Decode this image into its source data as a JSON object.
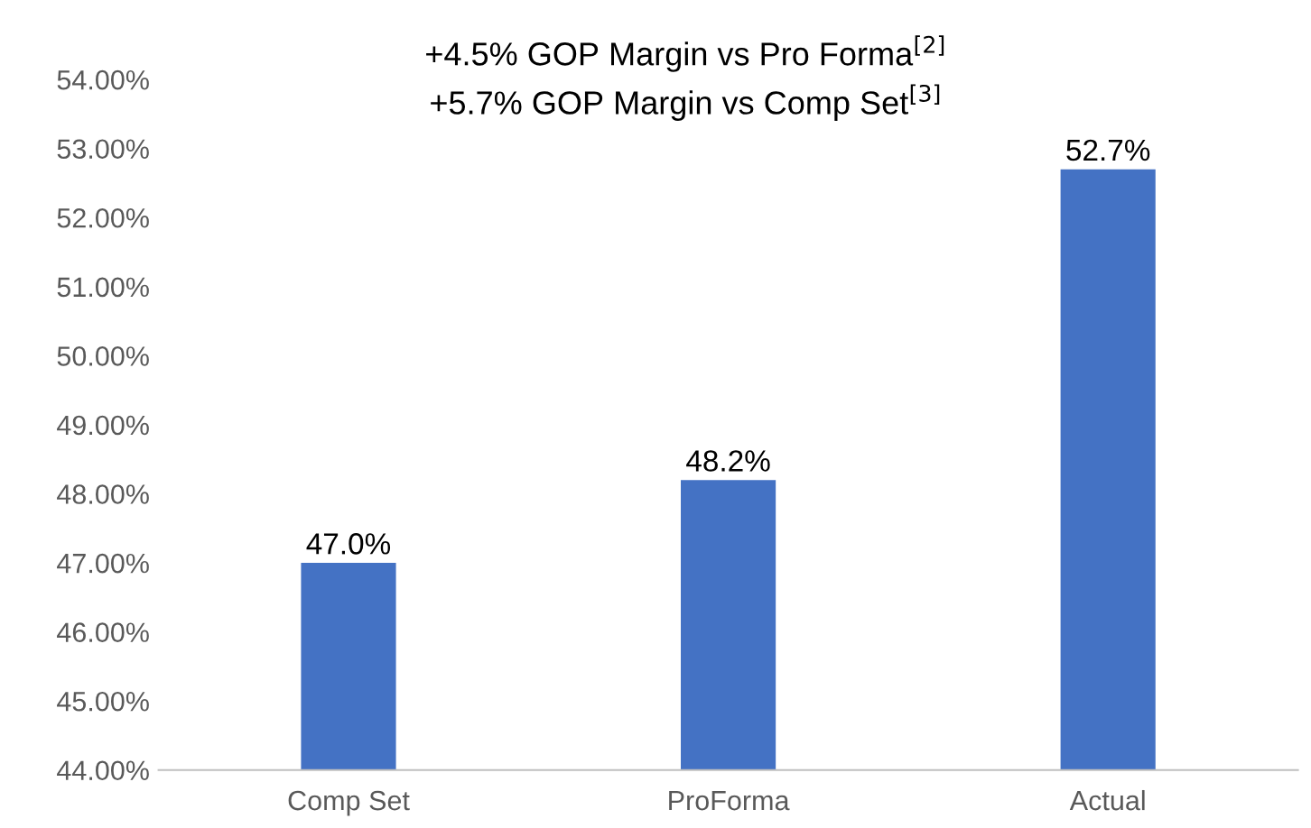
{
  "chart_data": {
    "type": "bar",
    "title": "+4.5% GOP Margin vs Pro Forma$^{[2]}$",
    "subtitle": "+5.7% GOP Margin vs Comp Set$^{[3]}$",
    "categories": [
      "Comp Set",
      "ProForma",
      "Actual"
    ],
    "values": [
      47.0,
      48.2,
      52.7
    ],
    "value_labels": [
      "47.0%",
      "48.2%",
      "52.7%"
    ],
    "color": "#4472c4",
    "ylim": [
      44,
      54
    ],
    "yticks": [
      {
        "value": 44,
        "label": "44.00%"
      },
      {
        "value": 45,
        "label": "45.00%"
      },
      {
        "value": 46,
        "label": "46.00%"
      },
      {
        "value": 47,
        "label": "47.00%"
      },
      {
        "value": 48,
        "label": "48.00%"
      },
      {
        "value": 49,
        "label": "49.00%"
      },
      {
        "value": 50,
        "label": "50.00%"
      },
      {
        "value": 51,
        "label": "51.00%"
      },
      {
        "value": 52,
        "label": "52.00%"
      },
      {
        "value": 53,
        "label": "53.00%"
      },
      {
        "value": 54,
        "label": "54.00%"
      }
    ],
    "grid": false,
    "legend": false
  }
}
